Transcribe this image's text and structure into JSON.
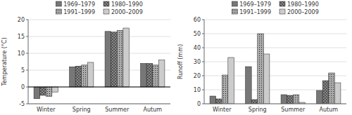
{
  "chart_data": [
    {
      "type": "bar",
      "ylabel": "Temperature (°C)",
      "categories": [
        "Winter",
        "Spring",
        "Summer",
        "Autum"
      ],
      "series": [
        {
          "name": "1969–1979",
          "color": "#777777",
          "values": [
            -3.5,
            6.0,
            16.5,
            7.0
          ]
        },
        {
          "name": "1980–1990",
          "color": "#888888",
          "values": [
            -2.5,
            6.2,
            16.3,
            7.0
          ]
        },
        {
          "name": "1991–1999",
          "color": "#aaaaaa",
          "values": [
            -2.8,
            6.5,
            16.8,
            6.5
          ]
        },
        {
          "name": "2000–2009",
          "color": "#cccccc",
          "values": [
            -1.5,
            7.3,
            17.5,
            8.0
          ]
        }
      ],
      "ylim": [
        -5,
        20
      ],
      "yticks": [
        -5,
        0,
        5,
        10,
        15,
        20
      ],
      "grid": true,
      "legend": "top"
    },
    {
      "type": "bar",
      "ylabel": "Runoff (mm)",
      "categories": [
        "Winter",
        "Spring",
        "Summer",
        "Autum"
      ],
      "series": [
        {
          "name": "1969–1979",
          "color": "#777777",
          "values": [
            5.5,
            26.5,
            6.5,
            9.5
          ]
        },
        {
          "name": "1980–1990",
          "color": "#888888",
          "values": [
            3.5,
            3.0,
            6.0,
            16.5
          ]
        },
        {
          "name": "1991–1999",
          "color": "#aaaaaa",
          "values": [
            20.5,
            50.0,
            6.5,
            22.0
          ]
        },
        {
          "name": "2000–2009",
          "color": "#cccccc",
          "values": [
            33.0,
            35.5,
            1.0,
            15.0
          ]
        }
      ],
      "ylim": [
        0,
        60
      ],
      "yticks": [
        0,
        10,
        20,
        30,
        40,
        50,
        60
      ],
      "grid": true,
      "legend": "top"
    }
  ]
}
